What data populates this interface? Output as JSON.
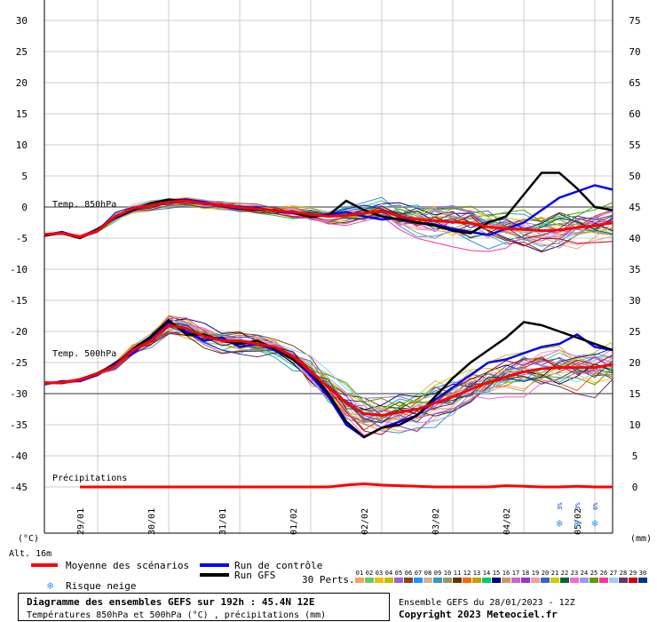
{
  "chart_data": {
    "type": "line",
    "left_axis": {
      "unit": "(°C)",
      "min": -45,
      "max": 30,
      "ticks": [
        30,
        25,
        20,
        15,
        10,
        5,
        0,
        -5,
        -10,
        -15,
        -20,
        -25,
        -30,
        -35,
        -40,
        -45
      ]
    },
    "right_axis": {
      "unit": "(mm)",
      "min": 0,
      "max": 75,
      "ticks": [
        75,
        70,
        65,
        60,
        55,
        50,
        45,
        40,
        35,
        30,
        25,
        20,
        15,
        10,
        5,
        0
      ]
    },
    "x": {
      "start_hour": 0,
      "end_hour": 192,
      "step_hours": 6,
      "day_labels": [
        {
          "hour": 12,
          "label": "29/01"
        },
        {
          "hour": 36,
          "label": "30/01"
        },
        {
          "hour": 60,
          "label": "31/01"
        },
        {
          "hour": 84,
          "label": "01/02"
        },
        {
          "hour": 108,
          "label": "02/02"
        },
        {
          "hour": 132,
          "label": "03/02"
        },
        {
          "hour": 156,
          "label": "04/02"
        },
        {
          "hour": 180,
          "label": "05/02"
        }
      ]
    },
    "altitude_label": "Alt. 16m",
    "section_labels": {
      "t850": "Temp. 850hPa",
      "t500": "Temp. 500hPa",
      "precip": "Précipitations"
    },
    "snow_risk": [
      {
        "hour": 174,
        "pct": "3%"
      },
      {
        "hour": 180,
        "pct": "3%"
      },
      {
        "hour": 186,
        "pct": "6%"
      }
    ],
    "series": [
      {
        "name": "Moyenne des scénarios",
        "color": "#ff0000",
        "t850": [
          -4.4,
          -4.2,
          -4.8,
          -3.8,
          -1.5,
          -0.2,
          0.3,
          0.8,
          1.0,
          0.6,
          0.3,
          -0.1,
          -0.3,
          -0.6,
          -0.8,
          -1.2,
          -1.5,
          -1.3,
          -1.0,
          -0.6,
          -1.5,
          -2.0,
          -2.2,
          -2.4,
          -2.6,
          -3.2,
          -3.5,
          -3.6,
          -3.8,
          -3.7,
          -3.3,
          -3.0,
          -2.5
        ],
        "t500": [
          -28.3,
          -28.2,
          -27.8,
          -26.8,
          -25.5,
          -23.0,
          -21.5,
          -19.0,
          -19.5,
          -20.8,
          -21.5,
          -21.5,
          -22.0,
          -22.5,
          -24.0,
          -26.5,
          -29.0,
          -31.5,
          -33.2,
          -33.5,
          -33.0,
          -32.5,
          -31.5,
          -30.5,
          -29.3,
          -28.2,
          -27.3,
          -26.5,
          -26.0,
          -25.8,
          -25.8,
          -25.8,
          -25.3
        ],
        "precip": [
          0,
          0,
          0,
          0,
          0,
          0,
          0,
          0,
          0,
          0,
          0,
          0,
          0,
          0,
          0,
          0,
          0,
          0.3,
          0.5,
          0.3,
          0.2,
          0.1,
          0,
          0,
          0,
          0,
          0.2,
          0.1,
          0,
          0,
          0.1,
          0,
          0
        ]
      },
      {
        "name": "Run de contrôle",
        "color": "#0000ff",
        "t850": [
          -4.5,
          -4.0,
          -4.9,
          -3.5,
          -1.8,
          -0.5,
          0.5,
          1.0,
          1.2,
          0.8,
          0.2,
          -0.3,
          -0.1,
          -0.7,
          -1.0,
          -1.5,
          -1.2,
          -0.8,
          -1.5,
          -2.0,
          -1.8,
          -2.5,
          -2.8,
          -3.5,
          -4.0,
          -4.5,
          -3.5,
          -2.5,
          -0.5,
          1.5,
          2.5,
          3.5,
          2.8
        ],
        "t500": [
          -28.5,
          -28.0,
          -28.0,
          -27.0,
          -25.0,
          -23.5,
          -21.0,
          -18.5,
          -20.0,
          -21.5,
          -21.0,
          -22.5,
          -22.0,
          -23.0,
          -24.5,
          -27.0,
          -30.5,
          -35.0,
          -37.0,
          -35.5,
          -34.5,
          -33.5,
          -31.0,
          -29.0,
          -27.0,
          -25.0,
          -24.5,
          -23.5,
          -22.5,
          -22.0,
          -20.5,
          -22.5,
          -23.0
        ],
        "precip": [
          0,
          0,
          0,
          0,
          0,
          0,
          0,
          0,
          0,
          0,
          0,
          0,
          0,
          0,
          0,
          0,
          0,
          0,
          0,
          0,
          0,
          0,
          0,
          0,
          0,
          0,
          0,
          0,
          0,
          0,
          0,
          0,
          0
        ]
      },
      {
        "name": "Run GFS",
        "color": "#000000",
        "t850": [
          -4.6,
          -4.2,
          -5.0,
          -3.6,
          -1.6,
          -0.4,
          0.6,
          1.2,
          1.0,
          0.5,
          0.4,
          -0.2,
          -0.4,
          -0.5,
          -0.9,
          -1.6,
          -1.3,
          1.0,
          -0.5,
          -1.5,
          -2.0,
          -2.5,
          -3.0,
          -3.8,
          -4.2,
          -2.5,
          -1.5,
          2.0,
          5.5,
          5.5,
          3.0,
          0.0,
          -0.5
        ],
        "t500": [
          -28.2,
          -28.3,
          -27.7,
          -26.7,
          -25.3,
          -22.8,
          -20.8,
          -18.2,
          -20.5,
          -20.5,
          -21.5,
          -22.0,
          -21.5,
          -22.8,
          -24.5,
          -26.5,
          -30.0,
          -34.5,
          -37.0,
          -35.5,
          -35.0,
          -33.5,
          -30.5,
          -27.5,
          -25.0,
          -23.0,
          -21.0,
          -18.5,
          -19.0,
          -20.0,
          -21.0,
          -22.0,
          -23.0
        ],
        "precip": [
          0,
          0,
          0,
          0,
          0,
          0,
          0,
          0,
          0,
          0,
          0,
          0,
          0,
          0,
          0,
          0,
          0,
          0,
          0,
          0,
          0,
          0,
          0,
          0,
          0,
          0,
          0,
          0,
          0,
          0,
          0,
          0,
          0
        ]
      }
    ],
    "perturbations_label": "30 Perts.",
    "perturbations": [
      {
        "id": "01",
        "color": "#f4a460"
      },
      {
        "id": "02",
        "color": "#66cc66"
      },
      {
        "id": "03",
        "color": "#e6c200"
      },
      {
        "id": "04",
        "color": "#c0c000"
      },
      {
        "id": "05",
        "color": "#9966cc"
      },
      {
        "id": "06",
        "color": "#8b4513"
      },
      {
        "id": "07",
        "color": "#1e90ff"
      },
      {
        "id": "08",
        "color": "#d2b48c"
      },
      {
        "id": "09",
        "color": "#3399cc"
      },
      {
        "id": "10",
        "color": "#999966"
      },
      {
        "id": "11",
        "color": "#663300"
      },
      {
        "id": "12",
        "color": "#ff6600"
      },
      {
        "id": "13",
        "color": "#c8a000"
      },
      {
        "id": "14",
        "color": "#00cc66"
      },
      {
        "id": "15",
        "color": "#000080"
      },
      {
        "id": "16",
        "color": "#cc9966"
      },
      {
        "id": "17",
        "color": "#cc66cc"
      },
      {
        "id": "18",
        "color": "#9933cc"
      },
      {
        "id": "19",
        "color": "#ff9999"
      },
      {
        "id": "20",
        "color": "#3366cc"
      },
      {
        "id": "21",
        "color": "#cccc00"
      },
      {
        "id": "22",
        "color": "#006633"
      },
      {
        "id": "23",
        "color": "#ff66cc"
      },
      {
        "id": "24",
        "color": "#9999ff"
      },
      {
        "id": "25",
        "color": "#669900"
      },
      {
        "id": "26",
        "color": "#ff3399"
      },
      {
        "id": "27",
        "color": "#99ccff"
      },
      {
        "id": "28",
        "color": "#663366"
      },
      {
        "id": "29",
        "color": "#cc0000"
      },
      {
        "id": "30",
        "color": "#003399"
      }
    ],
    "legend": {
      "mean": "Moyenne des scénarios",
      "control": "Run de contrôle",
      "gfs": "Run GFS",
      "snow": "Risque neige"
    },
    "title_box": {
      "line1": "Diagramme des ensembles GEFS sur 192h : 45.4N 12E",
      "line2": "Températures 850hPa et 500hPa (°C) , précipitations (mm)"
    },
    "footer": {
      "line1": "Ensemble GEFS du 28/01/2023 - 12Z",
      "line2": "Copyright 2023 Meteociel.fr"
    }
  }
}
